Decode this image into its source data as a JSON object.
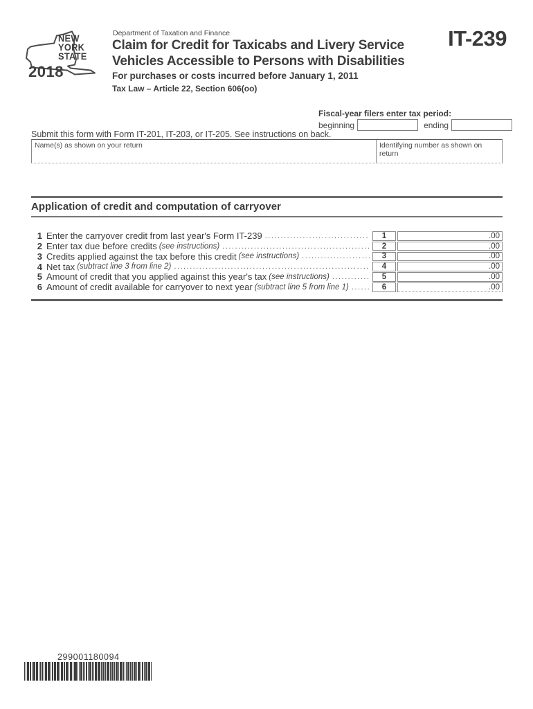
{
  "header": {
    "agency": "Department of Taxation and Finance",
    "title_line1": "Claim for Credit for Taxicabs and Livery Service",
    "title_line2": "Vehicles Accessible to Persons with Disabilities",
    "subtitle": "For purchases or costs incurred before January 1, 2011",
    "tax_law": "Tax Law – Article 22, Section 606(oo)",
    "form_number": "IT-239",
    "logo": {
      "year": "2018",
      "line1": "NEW",
      "line2": "YORK",
      "line3": "STATE"
    }
  },
  "fiscal_period": {
    "heading": "Fiscal-year filers enter tax period:",
    "beginning_label": "beginning",
    "beginning_value": "",
    "ending_label": "ending",
    "ending_value": ""
  },
  "submit_note": "Submit this form with Form IT-201, IT-203, or IT-205. See instructions on back.",
  "taxpayer_box": {
    "name_label": "Name(s) as shown on your return",
    "name_value": "",
    "id_label": "Identifying number as shown on return",
    "id_value": ""
  },
  "credit_section": {
    "title": "Application of credit and computation of carryover",
    "rows": [
      {
        "line": "1",
        "label": "Enter the carryover credit from last year's Form IT-239",
        "note": "",
        "amount": ".00"
      },
      {
        "line": "2",
        "label": "Enter tax due before credits",
        "note": "(see instructions)",
        "amount": ".00"
      },
      {
        "line": "3",
        "label": "Credits applied against the tax before this credit",
        "note": "(see instructions)",
        "amount": ".00"
      },
      {
        "line": "4",
        "label": "Net tax",
        "note": "(subtract line 3 from line 2)",
        "amount": ".00"
      },
      {
        "line": "5",
        "label": "Amount of credit that you applied against this year's tax",
        "note": "(see instructions)",
        "amount": ".00"
      },
      {
        "line": "6",
        "label": "Amount of credit available for carryover to next year",
        "note": "(subtract line 5 from line 1)",
        "amount": ".00"
      }
    ]
  },
  "barcode": {
    "value": "299001180094"
  }
}
